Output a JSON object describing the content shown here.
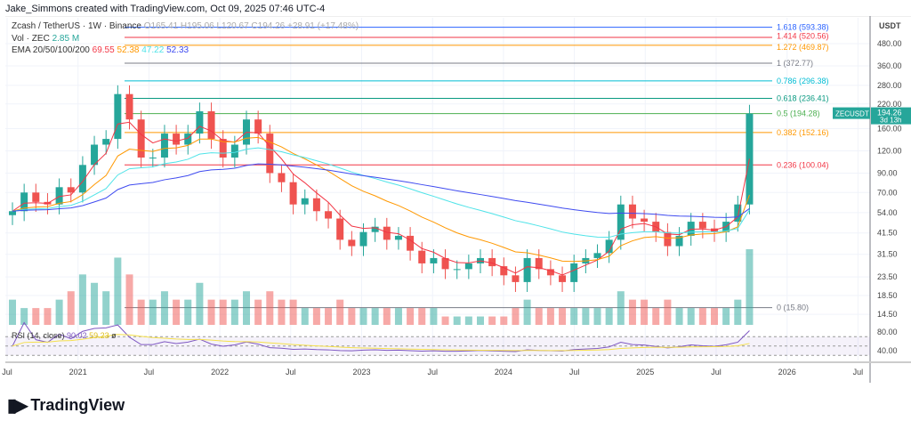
{
  "credit": "Jake_Simmons created with TradingView.com, Oct 09, 2025 07:46 UTC-4",
  "legend": {
    "symbol": "Zcash / TetherUS · 1W · Binance",
    "ohlc": "O165.41 H195.06 L120.67 C194.26 +28.91 (+17.48%)",
    "vol_label": "Vol · ZEC",
    "vol_value": "2.85 M",
    "ema_label": "EMA 20/50/100/200",
    "ema_values": [
      "69.55",
      "52.38",
      "47.22",
      "52.33"
    ],
    "rsi_label": "RSI (14, close)",
    "rsi_values": [
      "90.02",
      "59.23",
      "ø"
    ]
  },
  "colors": {
    "up": "#26a69a",
    "down": "#ef5350",
    "ema": [
      "#f23645",
      "#ff9800",
      "#4fe3e8",
      "#3f4bf0"
    ],
    "rsi": "#7e57c2",
    "rsi_ma": "#f5e04a"
  },
  "axis": {
    "currency": "USDT",
    "price_ticks": [
      "480.00",
      "360.00",
      "280.00",
      "220.00",
      "160.00",
      "120.00",
      "90.00",
      "70.00",
      "54.00",
      "41.50",
      "31.50",
      "23.50",
      "18.50",
      "14.50"
    ],
    "rsi_ticks": [
      "80.00",
      "40.00"
    ],
    "time_ticks": [
      "Jul",
      "2021",
      "Jul",
      "2022",
      "Jul",
      "2023",
      "Jul",
      "2024",
      "Jul",
      "2025",
      "Jul",
      "2026",
      "Jul"
    ]
  },
  "price_tag": {
    "symbol": "ZECUSDT",
    "price": "194.26",
    "countdown": "3d 13h"
  },
  "fib": [
    {
      "label": "1.618 (593.38)",
      "price": 593.38,
      "color": "#2962ff"
    },
    {
      "label": "1.414 (520.56)",
      "price": 520.56,
      "color": "#f23645"
    },
    {
      "label": "1.272 (469.87)",
      "price": 469.87,
      "color": "#ff9800"
    },
    {
      "label": "1 (372.77)",
      "price": 372.77,
      "color": "#787b86"
    },
    {
      "label": "0.786 (296.38)",
      "price": 296.38,
      "color": "#00bcd4"
    },
    {
      "label": "0.618 (236.41)",
      "price": 236.41,
      "color": "#089981"
    },
    {
      "label": "0.5 (194.28)",
      "price": 194.28,
      "color": "#4caf50"
    },
    {
      "label": "0.382 (152.16)",
      "price": 152.16,
      "color": "#ff9800"
    },
    {
      "label": "0.236 (100.04)",
      "price": 100.04,
      "color": "#f23645"
    },
    {
      "label": "0 (15.80)",
      "price": 15.8,
      "color": "#787b86"
    }
  ],
  "chart_data": {
    "type": "candlestick",
    "scale": "log",
    "start": "2020-07",
    "interval": "1M (approx.)",
    "close": [
      55,
      70,
      62,
      60,
      75,
      70,
      100,
      130,
      140,
      250,
      180,
      110,
      110,
      150,
      130,
      150,
      200,
      140,
      110,
      130,
      180,
      150,
      90,
      80,
      60,
      65,
      55,
      50,
      38,
      35,
      42,
      45,
      38,
      40,
      33,
      28,
      30,
      26,
      26,
      28,
      30,
      27,
      24,
      22,
      30,
      26,
      24,
      22,
      28,
      30,
      32,
      38,
      60,
      50,
      48,
      42,
      35,
      40,
      48,
      44,
      42,
      48,
      60,
      194.26
    ],
    "volume": [
      3,
      2,
      2,
      2,
      3,
      4,
      6,
      5,
      4,
      8,
      6,
      3,
      3,
      4,
      3,
      3,
      5,
      3,
      3,
      3,
      4,
      3,
      4,
      3,
      3,
      2,
      2,
      2,
      3,
      2,
      2,
      2,
      2,
      2,
      2,
      2,
      2,
      1,
      1,
      1,
      1,
      1,
      1,
      2,
      3,
      2,
      2,
      2,
      2,
      2,
      2,
      2,
      4,
      3,
      3,
      2,
      3,
      2,
      2,
      2,
      2,
      2,
      3,
      9
    ]
  },
  "brand": "TradingView"
}
